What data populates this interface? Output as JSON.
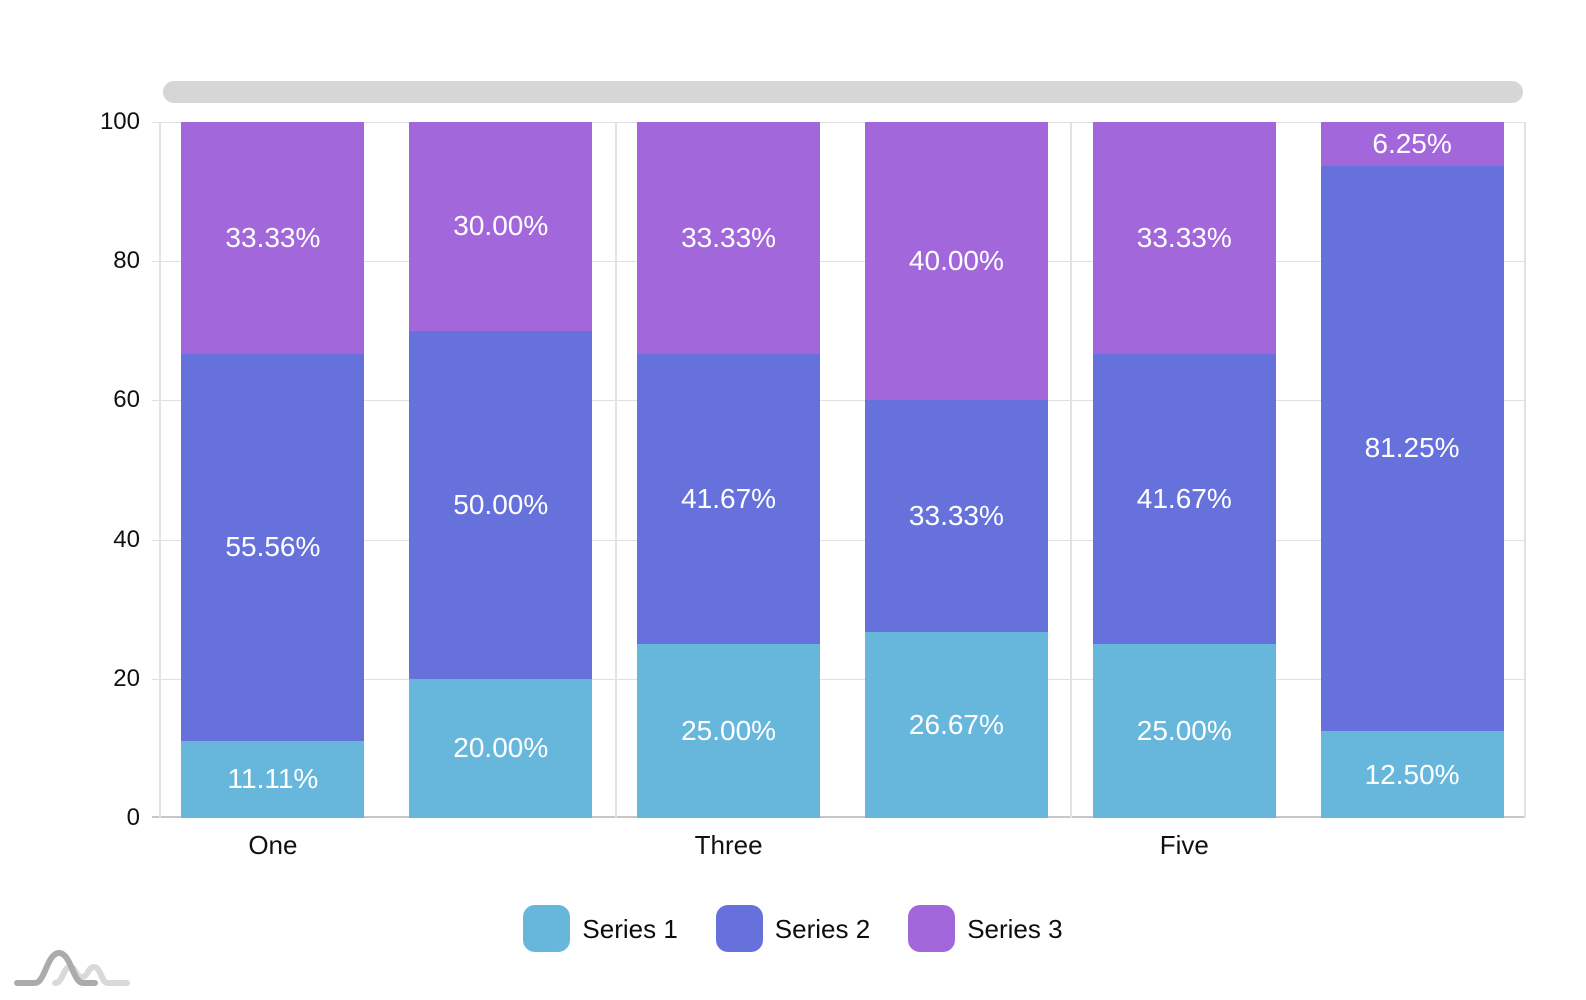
{
  "chart_data": {
    "type": "bar",
    "variant": "stacked-100-percent-column",
    "stacked": true,
    "categories": [
      "One",
      "",
      "Three",
      "",
      "Five",
      ""
    ],
    "series": [
      {
        "name": "Series 1",
        "color": "#67B7DC",
        "values": [
          11.11,
          20.0,
          25.0,
          26.67,
          25.0,
          12.5
        ],
        "labels": [
          "11.11%",
          "20.00%",
          "25.00%",
          "26.67%",
          "25.00%",
          "12.50%"
        ]
      },
      {
        "name": "Series 2",
        "color": "#6771DC",
        "values": [
          55.56,
          50.0,
          41.67,
          33.33,
          41.67,
          81.25
        ],
        "labels": [
          "55.56%",
          "50.00%",
          "41.67%",
          "33.33%",
          "41.67%",
          "81.25%"
        ]
      },
      {
        "name": "Series 3",
        "color": "#A367DC",
        "values": [
          33.33,
          30.0,
          33.33,
          40.0,
          33.33,
          6.25
        ],
        "labels": [
          "33.33%",
          "30.00%",
          "33.33%",
          "40.00%",
          "33.33%",
          "6.25%"
        ]
      }
    ],
    "y_axis": {
      "min": 0,
      "max": 100,
      "ticks": [
        0,
        20,
        40,
        60,
        80,
        100
      ]
    },
    "x_axis": {
      "visible_labels": [
        "One",
        "Three",
        "Five"
      ]
    },
    "legend_position": "bottom",
    "grid": true,
    "colors": {
      "grid": "#e0e0e0",
      "category_line": "#e2e2e2",
      "axis_line": "#c8c8c8",
      "tick_label": "#111111",
      "data_label": "#ffffff",
      "scrollbar": "#d6d6d6",
      "watermark_dark": "#ababab",
      "watermark_light": "#d9d9d9"
    }
  }
}
